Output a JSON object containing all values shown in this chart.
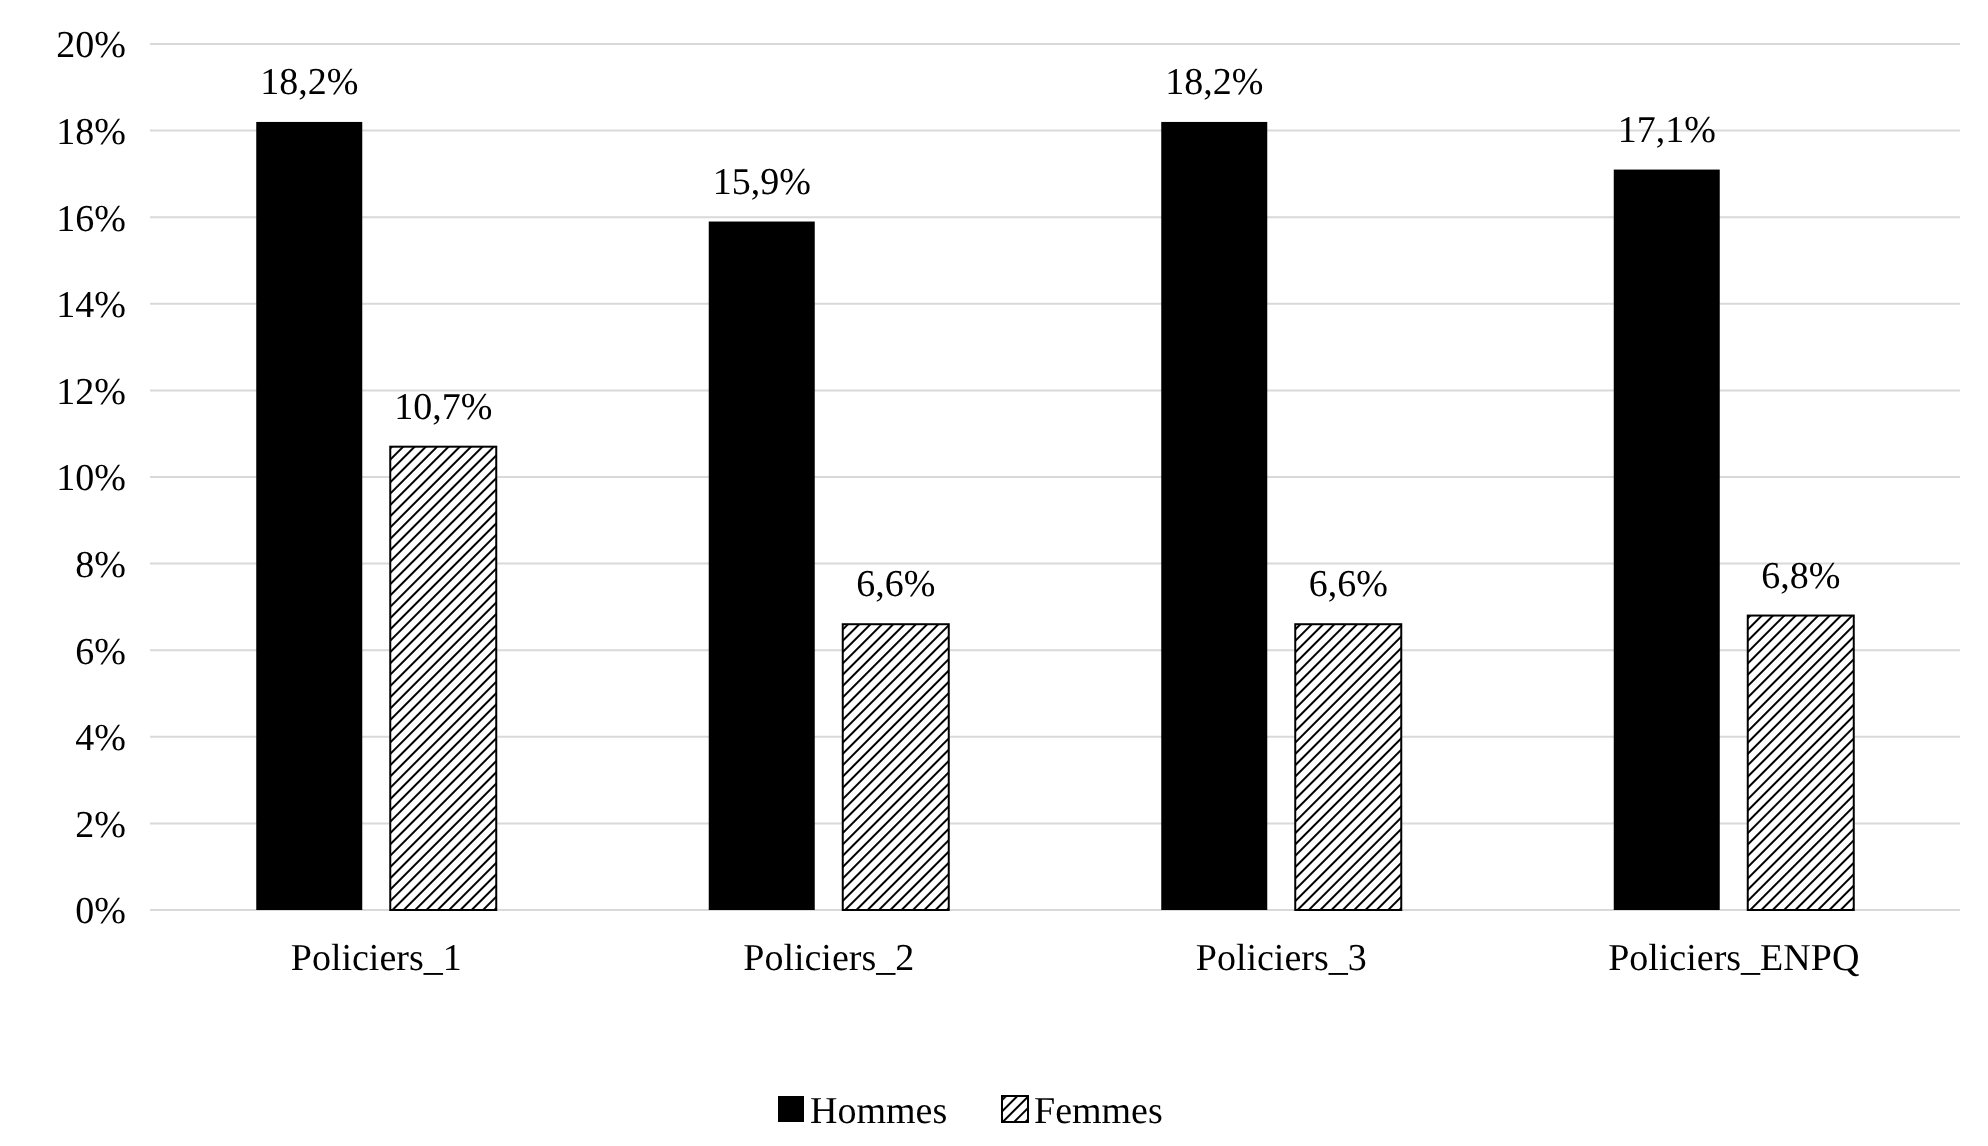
{
  "chart_data": {
    "type": "bar",
    "categories": [
      "Policiers_1",
      "Policiers_2",
      "Policiers_3",
      "Policiers_ENPQ"
    ],
    "series": [
      {
        "name": "Hommes",
        "color": "#000000",
        "values": [
          18.2,
          15.9,
          18.2,
          17.1
        ],
        "value_labels": [
          "18,2%",
          "15,9%",
          "18,2%",
          "17,1%"
        ]
      },
      {
        "name": "Femmes",
        "color": "#000000",
        "values": [
          10.7,
          6.6,
          6.6,
          6.8
        ],
        "value_labels": [
          "10,7%",
          "6,6%",
          "6,6%",
          "6,8%"
        ]
      }
    ],
    "ylim": [
      0,
      20
    ],
    "yticks": [
      {
        "value": 0,
        "label": "0%"
      },
      {
        "value": 2,
        "label": "2%"
      },
      {
        "value": 4,
        "label": "4%"
      },
      {
        "value": 6,
        "label": "6%"
      },
      {
        "value": 8,
        "label": "8%"
      },
      {
        "value": 10,
        "label": "10%"
      },
      {
        "value": 12,
        "label": "12%"
      },
      {
        "value": 14,
        "label": "14%"
      },
      {
        "value": 16,
        "label": "16%"
      },
      {
        "value": 18,
        "label": "18%"
      },
      {
        "value": 20,
        "label": "20%"
      }
    ],
    "grid": "y",
    "legend": "bottom"
  }
}
